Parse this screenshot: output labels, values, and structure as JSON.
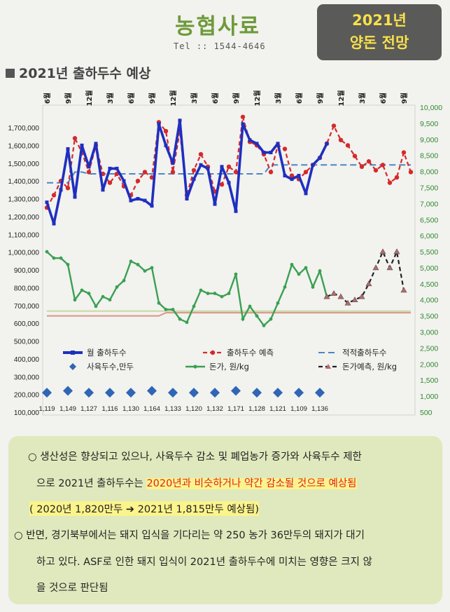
{
  "header": {
    "brand": "농협사료",
    "tel": "Tel :: 1544-4646",
    "badge_line1": "2021년",
    "badge_line2": "양돈 전망"
  },
  "section_title": "2021년 출하두수 예상",
  "colors": {
    "monthly": "#1f2fbf",
    "forecast": "#d42a2a",
    "average": "#4a86c5",
    "sows": "#2f66b5",
    "price": "#3aa052",
    "price_forecast": "#222222",
    "left_axis_text": "#222222",
    "right_axis_text": "#2f8a2f"
  },
  "chart_data": {
    "type": "line",
    "x_ticks": [
      "6월",
      "9월",
      "12월",
      "3월",
      "6월",
      "9월",
      "12월",
      "3월",
      "6월",
      "9월",
      "12월",
      "3월",
      "6월",
      "9월",
      "12월",
      "3월",
      "6월",
      "9월"
    ],
    "left_axis": {
      "min": 100000,
      "max": 1700000,
      "ticks": [
        "1,700,000",
        "1,600,000",
        "1,500,000",
        "1,400,000",
        "1,300,000",
        "1,200,000",
        "1,100,000",
        "1,000,000",
        "900,000",
        "800,000",
        "700,000",
        "600,000",
        "500,000",
        "400,000",
        "300,000",
        "200,000",
        "100,000"
      ]
    },
    "right_axis": {
      "min": 500,
      "max": 10000,
      "ticks": [
        "10,000",
        "9,500",
        "9,000",
        "8,500",
        "8,000",
        "7,500",
        "7,000",
        "6,500",
        "6,000",
        "5,500",
        "5,000",
        "4,500",
        "4,000",
        "3,500",
        "3,000",
        "2,500",
        "2,000",
        "1,500",
        "1,000",
        "500"
      ]
    },
    "series": [
      {
        "name": "월 출하두수",
        "axis": "left",
        "x_start": 0,
        "values": [
          1280000,
          1160000,
          1350000,
          1580000,
          1310000,
          1600000,
          1480000,
          1610000,
          1350000,
          1470000,
          1470000,
          1400000,
          1290000,
          1300000,
          1290000,
          1260000,
          1720000,
          1600000,
          1500000,
          1740000,
          1300000,
          1410000,
          1490000,
          1470000,
          1270000,
          1480000,
          1390000,
          1230000,
          1720000,
          1630000,
          1610000,
          1560000,
          1560000,
          1610000,
          1430000,
          1410000,
          1430000,
          1330000,
          1490000,
          1530000,
          1610000
        ]
      },
      {
        "name": "출하두수 예측",
        "axis": "left",
        "x_start": 0,
        "values": [
          1250000,
          1320000,
          1400000,
          1360000,
          1640000,
          1560000,
          1450000,
          1600000,
          1440000,
          1390000,
          1440000,
          1370000,
          1320000,
          1400000,
          1450000,
          1420000,
          1730000,
          1680000,
          1450000,
          1680000,
          1320000,
          1460000,
          1550000,
          1480000,
          1340000,
          1380000,
          1480000,
          1450000,
          1760000,
          1620000,
          1600000,
          1550000,
          1450000,
          1600000,
          1580000,
          1430000,
          1410000,
          1450000,
          1490000,
          1530000,
          1610000,
          1710000,
          1630000,
          1600000,
          1540000,
          1480000,
          1510000,
          1460000,
          1490000,
          1390000,
          1420000,
          1560000,
          1450000
        ]
      },
      {
        "name": "적적출하두수",
        "axis": "left",
        "x_start": 0,
        "values": [
          1390000,
          1390000,
          1390000,
          1390000,
          1450000,
          1450000,
          1440000,
          1440000,
          1440000,
          1440000,
          1440000,
          1440000,
          1440000,
          1440000,
          1440000,
          1440000,
          1440000,
          1440000,
          1440000,
          1440000,
          1440000,
          1440000,
          1440000,
          1440000,
          1440000,
          1440000,
          1440000,
          1440000,
          1440000,
          1440000,
          1440000,
          1440000,
          1490000,
          1490000,
          1490000,
          1490000,
          1490000,
          1490000,
          1490000,
          1490000,
          1490000,
          1490000,
          1490000,
          1490000,
          1490000,
          1490000,
          1490000,
          1490000,
          1490000,
          1490000,
          1490000,
          1490000,
          1490000
        ]
      },
      {
        "name": "사육두수,만두",
        "axis": "left",
        "x_start": 0,
        "step": 3,
        "values": [
          210000,
          220000,
          210000,
          210000,
          210000,
          220000,
          210000,
          210000,
          210000,
          220000,
          210000,
          210000,
          210000,
          210000
        ],
        "labels": [
          "1,119",
          "1,149",
          "1,127",
          "1,116",
          "1,130",
          "1,164",
          "1,133",
          "1,120",
          "1,132",
          "1,171",
          "1,128",
          "1,121",
          "1,109",
          "1,136"
        ]
      },
      {
        "name": "돈가, 원/kg",
        "axis": "right",
        "x_start": 0,
        "values": [
          5500,
          5300,
          5300,
          5100,
          4000,
          4300,
          4200,
          3800,
          4100,
          4000,
          4400,
          4600,
          5200,
          5100,
          4900,
          5000,
          3900,
          3700,
          3700,
          3400,
          3300,
          3800,
          4300,
          4200,
          4200,
          4100,
          4200,
          4800,
          3400,
          3800,
          3500,
          3200,
          3400,
          3900,
          4400,
          5100,
          4800,
          5000,
          4400,
          4900,
          4100
        ]
      },
      {
        "name": "돈가예측, 원/kg",
        "axis": "right",
        "x_start": 40,
        "values": [
          4100,
          4200,
          4100,
          3900,
          4000,
          4100,
          4500,
          5000,
          5500,
          5000,
          5500,
          4300
        ]
      }
    ],
    "ref_lines": [
      {
        "axis": "right",
        "points": [
          [
            0,
            3500
          ],
          [
            16,
            3500
          ],
          [
            17,
            3600
          ],
          [
            52,
            3600
          ]
        ],
        "color": "#d9958a"
      },
      {
        "axis": "right",
        "points": [
          [
            0,
            3650
          ],
          [
            52,
            3650
          ]
        ],
        "color": "#c7d9a0"
      }
    ],
    "legend": [
      {
        "label": "월 출하두수",
        "series": 0
      },
      {
        "label": "출하두수 예측",
        "series": 1
      },
      {
        "label": "적적출하두수",
        "series": 2
      },
      {
        "label": "사육두수,만두",
        "series": 3
      },
      {
        "label": "돈가, 원/kg",
        "series": 4
      },
      {
        "label": "돈가예측, 원/kg",
        "series": 5
      }
    ]
  },
  "notes": {
    "p1_line1": "○ 생산성은 향상되고 있으나, 사육두수 감소 및 폐업농가 증가와 사육두수 제한",
    "p1_line2_a": "으로 2021년 출하두수는 ",
    "p1_line2_b": "2020년과 비슷하거나 약간 감소될 것으로 예상됨",
    "p1_line3": "( 2020년 1,820만두 ➔ 2021년 1,815만두 예상됨)",
    "p2_line1": "○ 반면, 경기북부에서는 돼지 입식을 기다리는 약 250 농가 36만두의 돼지가 대기",
    "p2_line2": "하고 있다. ASF로 인한 돼지 입식이 2021년 출하두수에 미치는 영향은 크지 않",
    "p2_line3": "을 것으로 판단됨"
  }
}
